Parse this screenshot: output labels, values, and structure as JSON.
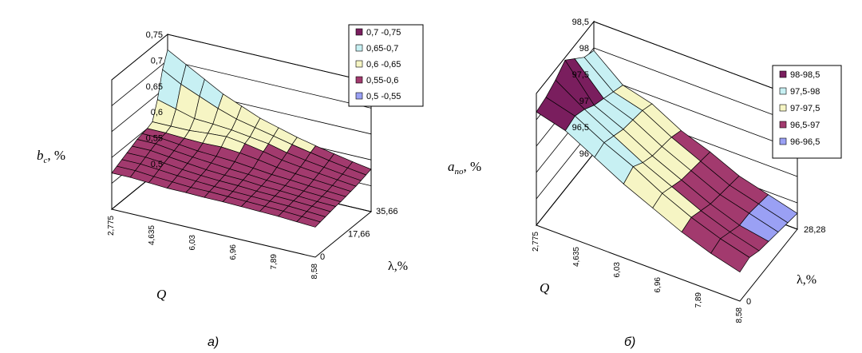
{
  "chart_data": [
    {
      "type": "surface",
      "panel_label": "а)",
      "zlabel_main": "b",
      "zlabel_sub": "c",
      "zlabel_suffix": ", %",
      "xlabel": "Q",
      "ylabel": "λ,%",
      "x_ticks": [
        "2,775",
        "4,635",
        "6,03",
        "6,96",
        "7,89",
        "8,58"
      ],
      "y_ticks": [
        "0",
        "17,66",
        "35,66"
      ],
      "z_ticks": [
        "0,5",
        "0,55",
        "0,6",
        "0,65",
        "0,7",
        "0,75"
      ],
      "zlim": [
        0.5,
        0.75
      ],
      "legend_position": "top-right",
      "legend": [
        {
          "label": "0,7 -0,75",
          "color": "#7a1e5e",
          "range": [
            0.7,
            0.75
          ]
        },
        {
          "label": "0,65-0,7",
          "color": "#c7f0f3",
          "range": [
            0.65,
            0.7
          ]
        },
        {
          "label": "0,6 -0,65",
          "color": "#f6f5c4",
          "range": [
            0.6,
            0.65
          ]
        },
        {
          "label": "0,55-0,6",
          "color": "#a23a6e",
          "range": [
            0.55,
            0.6
          ]
        },
        {
          "label": "0,5 -0,55",
          "color": "#9aa0f4",
          "range": [
            0.5,
            0.55
          ]
        }
      ],
      "surface_z": [
        [
          0.57,
          0.575,
          0.58,
          0.585,
          0.59,
          0.595,
          0.598,
          0.6,
          0.605,
          0.64,
          0.69,
          0.72
        ],
        [
          0.57,
          0.575,
          0.58,
          0.585,
          0.59,
          0.595,
          0.598,
          0.6,
          0.605,
          0.63,
          0.67,
          0.7
        ],
        [
          0.568,
          0.572,
          0.577,
          0.582,
          0.586,
          0.59,
          0.594,
          0.598,
          0.605,
          0.62,
          0.655,
          0.68
        ],
        [
          0.566,
          0.57,
          0.574,
          0.578,
          0.582,
          0.586,
          0.59,
          0.597,
          0.608,
          0.618,
          0.64,
          0.66
        ],
        [
          0.566,
          0.568,
          0.572,
          0.575,
          0.578,
          0.583,
          0.588,
          0.598,
          0.61,
          0.615,
          0.628,
          0.645
        ],
        [
          0.565,
          0.568,
          0.57,
          0.573,
          0.576,
          0.58,
          0.586,
          0.595,
          0.605,
          0.61,
          0.62,
          0.63
        ],
        [
          0.565,
          0.567,
          0.569,
          0.572,
          0.575,
          0.578,
          0.582,
          0.59,
          0.598,
          0.605,
          0.612,
          0.62
        ],
        [
          0.564,
          0.566,
          0.568,
          0.57,
          0.572,
          0.575,
          0.578,
          0.584,
          0.59,
          0.596,
          0.604,
          0.61
        ],
        [
          0.563,
          0.565,
          0.567,
          0.569,
          0.571,
          0.573,
          0.576,
          0.58,
          0.585,
          0.59,
          0.597,
          0.602
        ],
        [
          0.562,
          0.564,
          0.566,
          0.568,
          0.569,
          0.571,
          0.573,
          0.577,
          0.581,
          0.585,
          0.59,
          0.595
        ],
        [
          0.56,
          0.562,
          0.564,
          0.566,
          0.567,
          0.569,
          0.571,
          0.574,
          0.577,
          0.58,
          0.584,
          0.588
        ],
        [
          0.558,
          0.56,
          0.562,
          0.564,
          0.566,
          0.567,
          0.569,
          0.571,
          0.573,
          0.576,
          0.579,
          0.582
        ]
      ]
    },
    {
      "type": "surface",
      "panel_label": "б)",
      "zlabel_main": "a",
      "zlabel_sub": "по",
      "zlabel_suffix": ", %",
      "xlabel": "Q",
      "ylabel": "λ,%",
      "x_ticks": [
        "2,775",
        "4,635",
        "6,03",
        "6,96",
        "7,89",
        "8,58"
      ],
      "y_ticks": [
        "0",
        "28,28"
      ],
      "z_ticks": [
        "96",
        "96,5",
        "97",
        "97,5",
        "98",
        "98,5"
      ],
      "zlim": [
        96,
        98.5
      ],
      "legend_position": "top-right",
      "legend": [
        {
          "label": "98-98,5",
          "color": "#7a1e5e",
          "range": [
            98.0,
            98.5
          ]
        },
        {
          "label": "97,5-98",
          "color": "#c7f0f3",
          "range": [
            97.5,
            98.0
          ]
        },
        {
          "label": "97-97,5",
          "color": "#f6f5c4",
          "range": [
            97.0,
            97.5
          ]
        },
        {
          "label": "96,5-97",
          "color": "#a23a6e",
          "range": [
            96.5,
            97.0
          ]
        },
        {
          "label": "96-96,5",
          "color": "#9aa0f4",
          "range": [
            96.0,
            96.5
          ]
        }
      ],
      "surface_z": [
        [
          98.15,
          98.2,
          98.3,
          98.45,
          98.25,
          98.05,
          97.95
        ],
        [
          98.0,
          98.05,
          97.95,
          97.8,
          97.7,
          97.6,
          97.5
        ],
        [
          97.7,
          97.75,
          97.65,
          97.55,
          97.5,
          97.45,
          97.35
        ],
        [
          97.4,
          97.5,
          97.35,
          97.25,
          97.2,
          97.15,
          97.05
        ],
        [
          97.15,
          97.2,
          97.1,
          97.0,
          96.95,
          96.9,
          96.85
        ],
        [
          96.9,
          96.95,
          96.85,
          96.75,
          96.7,
          96.65,
          96.6
        ],
        [
          96.7,
          96.75,
          96.65,
          96.55,
          96.55,
          96.5,
          96.45
        ],
        [
          96.55,
          96.6,
          96.5,
          96.45,
          96.4,
          96.35,
          96.3
        ]
      ]
    }
  ]
}
